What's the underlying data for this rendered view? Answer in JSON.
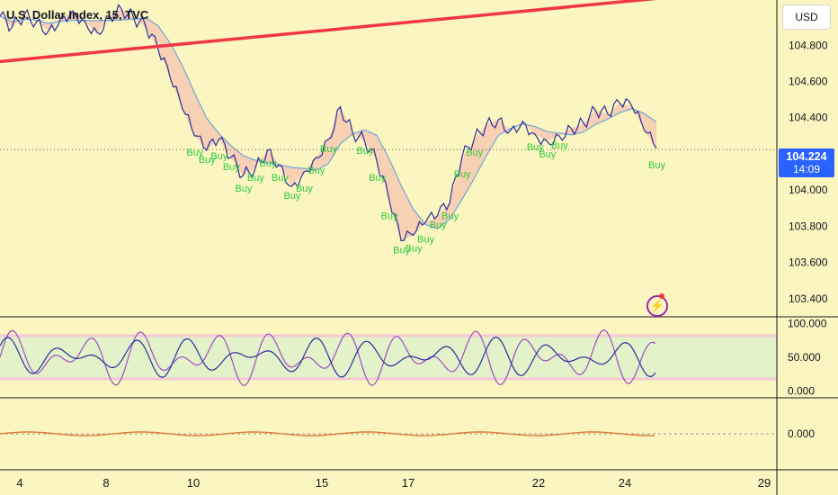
{
  "header": {
    "title": "U.S. Dollar Index, 15, TVC"
  },
  "scale_button": {
    "label": "USD"
  },
  "last_price": {
    "value": "104.224",
    "countdown": "14:09"
  },
  "icons": {
    "alert": "lightning-bolt-icon"
  },
  "colors": {
    "background": "#fbf5bf",
    "accent": "#2962ff",
    "trendline": "#f23645",
    "price": "#2a2e9c",
    "buy_signal": "#2ecc40",
    "oscillator_fast": "#2a2e9c",
    "oscillator_slow": "#9c4fc4"
  },
  "chart_data": [
    {
      "type": "line",
      "title": "U.S. Dollar Index, 15, TVC",
      "x_ticks": [
        "4",
        "8",
        "10",
        "15",
        "17",
        "22",
        "24",
        "29"
      ],
      "ylim": [
        103.3,
        105.05
      ],
      "y_ticks": [
        "104.800",
        "104.600",
        "104.400",
        "104.000",
        "103.800",
        "103.600",
        "103.400"
      ],
      "series": [
        {
          "values": [
            104.96,
            104.9,
            104.97,
            104.93,
            104.88,
            104.95,
            104.99,
            104.93,
            104.87,
            104.96,
            105.0,
            104.95,
            104.9,
            104.78,
            104.62,
            104.45,
            104.3,
            104.22,
            104.28,
            104.18,
            104.08,
            104.12,
            104.22,
            104.14,
            104.02,
            104.1,
            104.18,
            104.28,
            104.46,
            104.32,
            104.27,
            104.16,
            103.95,
            103.72,
            103.75,
            103.82,
            103.86,
            103.93,
            104.18,
            104.28,
            104.36,
            104.39,
            104.33,
            104.38,
            104.31,
            104.27,
            104.3,
            104.34,
            104.37,
            104.44,
            104.42,
            104.48,
            104.46,
            104.33,
            104.23
          ]
        }
      ],
      "buy_signals": 26,
      "trendline": {
        "from": 104.71,
        "to": 105.08
      }
    },
    {
      "type": "line",
      "y_ticks": [
        "100.000",
        "50.000",
        "0.000"
      ],
      "ylim": [
        -10,
        110
      ],
      "bands": [
        20,
        80
      ]
    },
    {
      "type": "line",
      "y_ticks": [
        "0.000"
      ],
      "ylim": [
        -1,
        1
      ]
    }
  ]
}
